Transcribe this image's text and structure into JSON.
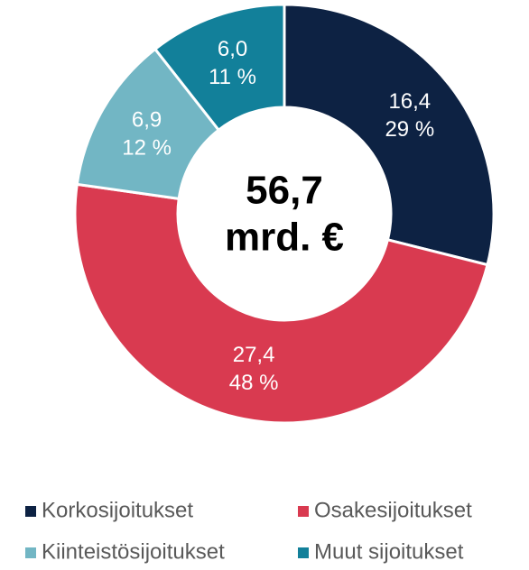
{
  "chart_data": {
    "type": "donut",
    "categories": [
      "Korkosijoitukset",
      "Osakesijoitukset",
      "Kiinteistösijoitukset",
      "Muut sijoitukset"
    ],
    "values": [
      16.4,
      27.4,
      6.9,
      6.0
    ],
    "value_labels": [
      "16,4",
      "27,4",
      "6,9",
      "6,0"
    ],
    "percent_labels": [
      "29 %",
      "48 %",
      "12 %",
      "11 %"
    ],
    "colors": [
      "#0d2243",
      "#d93a50",
      "#72b6c4",
      "#12809a"
    ],
    "center_value": "56,7",
    "center_unit": "mrd. €",
    "legend": "bottom"
  }
}
